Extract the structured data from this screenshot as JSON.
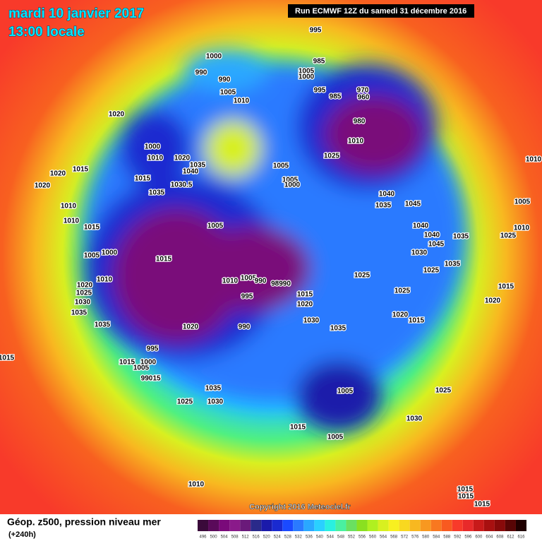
{
  "header": {
    "title": "mardi 10 janvier 2017",
    "subtitle": "13:00 locale",
    "run": "Run ECMWF 12Z du samedi 31 décembre 2016"
  },
  "footer": {
    "copyright": "Copyright 2016 Meteociel.fr",
    "label": "Géop. z500, pression niveau mer",
    "lead": "(+240h)"
  },
  "scale": {
    "ticks": [
      496,
      500,
      504,
      508,
      512,
      516,
      520,
      524,
      528,
      532,
      536,
      540,
      544,
      548,
      552,
      556,
      560,
      564,
      568,
      572,
      576,
      580,
      584,
      588,
      592,
      596,
      600,
      604,
      608,
      612,
      616
    ],
    "colors": [
      "#3a0a3a",
      "#5a0a5a",
      "#7a0a7a",
      "#8a1a8a",
      "#6a1a7a",
      "#2a2a8a",
      "#1a1aaa",
      "#1a2ad0",
      "#1a4aff",
      "#2a7aff",
      "#2aa8ff",
      "#2ad0ff",
      "#2af0e0",
      "#4af0a0",
      "#6ae060",
      "#8ae020",
      "#b0f020",
      "#d8f020",
      "#f8f020",
      "#f8d820",
      "#f8b820",
      "#f89820",
      "#f87820",
      "#f85a20",
      "#f83a2a",
      "#e82a2a",
      "#c81a1a",
      "#a81010",
      "#880a0a",
      "#580505",
      "#200000"
    ]
  },
  "isobar_labels": [
    "995",
    "1000",
    "990",
    "990",
    "1005",
    "1010",
    "1020",
    "1000",
    "1010",
    "1020",
    "1035",
    "1040",
    "1030.5",
    "1015",
    "1035",
    "1020",
    "1015",
    "1020",
    "1010",
    "1010",
    "1015",
    "1005",
    "1000",
    "1015",
    "1010",
    "1020",
    "1025",
    "1030",
    "1035",
    "1035",
    "1020",
    "995",
    "1015",
    "1005",
    "1000",
    "990",
    "15",
    "1015",
    "1005",
    "1010",
    "1005",
    "990",
    "98990",
    "995",
    "990",
    "1015",
    "1020",
    "1030",
    "1035",
    "1005",
    "1005",
    "1000",
    "1005",
    "1000",
    "985",
    "995",
    "985",
    "970",
    "960",
    "980",
    "1010",
    "1025",
    "1040",
    "1035",
    "1045",
    "1040",
    "1040",
    "1045",
    "1035",
    "1030",
    "1025",
    "1035",
    "1025",
    "1025",
    "1020",
    "1015",
    "1035",
    "1030",
    "1025",
    "1005",
    "1025",
    "1030",
    "1015",
    "1005",
    "1010",
    "1015",
    "1015",
    "1015",
    "1010",
    "1005",
    "1010",
    "1025",
    "1015",
    "1020"
  ]
}
